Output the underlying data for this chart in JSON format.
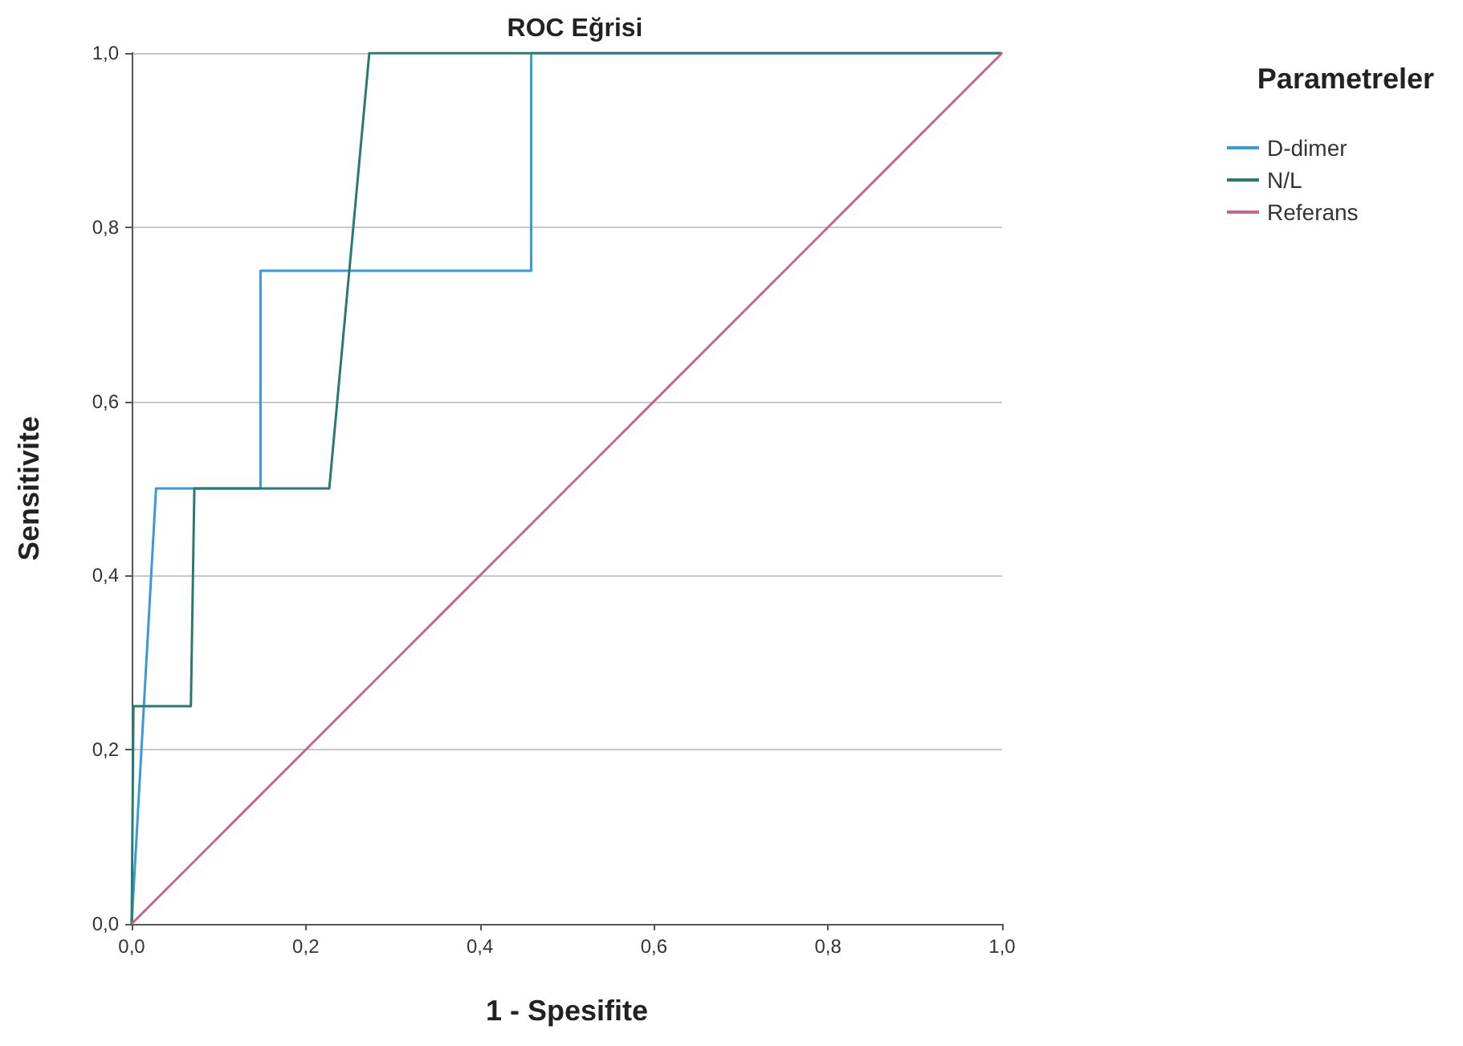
{
  "chart_data": {
    "type": "line",
    "title": "ROC Eğrisi",
    "xlabel": "1 - Spesifite",
    "ylabel": "Sensitivite",
    "legend_title": "Parametreler",
    "legend": "top right",
    "grid": "y",
    "marker": "none",
    "line_style": "solid",
    "xlim": [
      0,
      1
    ],
    "ylim": [
      0,
      1
    ],
    "xticks": [
      {
        "value": 0,
        "label": "0,0"
      },
      {
        "value": 0.2,
        "label": "0,2"
      },
      {
        "value": 0.4,
        "label": "0,4"
      },
      {
        "value": 0.6,
        "label": "0,6"
      },
      {
        "value": 0.8,
        "label": "0,8"
      },
      {
        "value": 1,
        "label": "1,0"
      }
    ],
    "yticks": [
      {
        "value": 0,
        "label": "0,0"
      },
      {
        "value": 0.2,
        "label": "0,2"
      },
      {
        "value": 0.4,
        "label": "0,4"
      },
      {
        "value": 0.6,
        "label": "0,6"
      },
      {
        "value": 0.8,
        "label": "0,8"
      },
      {
        "value": 1,
        "label": "1,0"
      }
    ],
    "series": [
      {
        "name": "D-dimer",
        "color": "#3a9ad9",
        "x": [
          0,
          0.028,
          0.148,
          0.148,
          0.459,
          0.459,
          1
        ],
        "values": [
          0,
          0.5,
          0.5,
          0.75,
          0.75,
          1,
          1
        ]
      },
      {
        "name": "N/L",
        "color": "#2b7a70",
        "x": [
          0,
          0.002,
          0.068,
          0.072,
          0.227,
          0.273,
          1
        ],
        "values": [
          0,
          0.25,
          0.25,
          0.5,
          0.5,
          1,
          1
        ]
      },
      {
        "name": "Referans",
        "color": "#c8638c",
        "x": [
          0,
          1
        ],
        "values": [
          0,
          1
        ]
      }
    ]
  }
}
